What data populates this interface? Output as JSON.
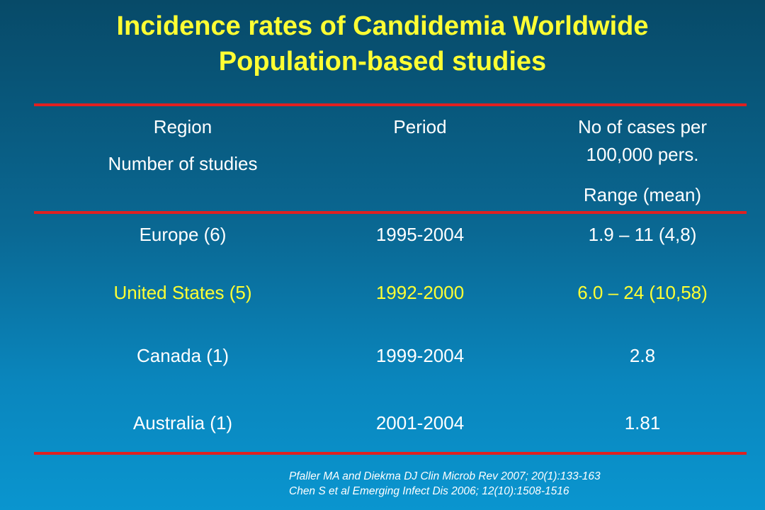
{
  "title": {
    "line1": "Incidence rates of Candidemia Worldwide",
    "line2": "Population-based studies"
  },
  "table": {
    "headers": {
      "region": "Region",
      "studies": "Number of studies",
      "period": "Period",
      "cases_line1": "No of cases per",
      "cases_line2": "100,000 pers.",
      "range": "Range (mean)"
    },
    "rows": [
      {
        "region": "Europe (6)",
        "period": "1995-2004",
        "cases": "1.9 – 11 (4,8)"
      },
      {
        "region": "United States (5)",
        "period": "1992-2000",
        "cases": "6.0 – 24 (10,58)"
      },
      {
        "region": "Canada (1)",
        "period": "1999-2004",
        "cases": "2.8"
      },
      {
        "region": "Australia  (1)",
        "period": "2001-2004",
        "cases": "1.81"
      }
    ]
  },
  "references": {
    "line1": "Pfaller MA and Diekma DJ Clin Microb Rev 2007; 20(1):133-163",
    "line2": "Chen S et al Emerging Infect Dis 2006; 12(10):1508-1516"
  },
  "colors": {
    "title": "#ffff33",
    "rule": "#e02020",
    "highlight_row": "#ffff33"
  }
}
